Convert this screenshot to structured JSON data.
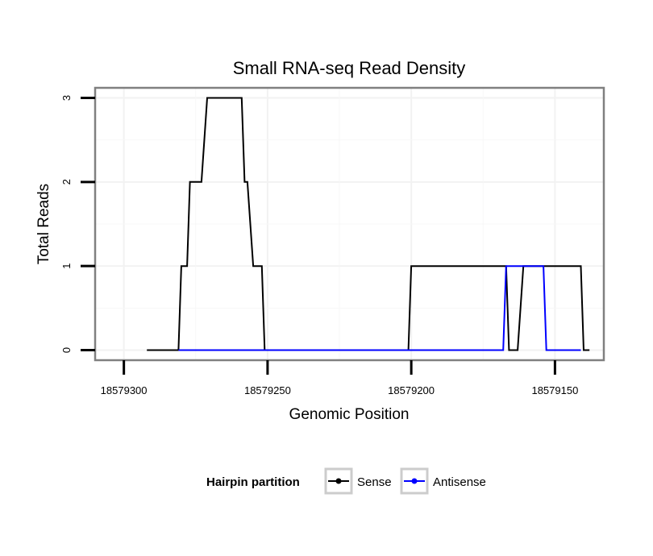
{
  "chart_data": {
    "type": "line",
    "title": "Small RNA-seq Read Density",
    "xlabel": "Genomic Position",
    "ylabel": "Total Reads",
    "x_reversed": true,
    "xlim": [
      18579310,
      18579133
    ],
    "ylim": [
      -0.12,
      3.12
    ],
    "x_ticks": [
      18579300,
      18579250,
      18579200,
      18579150
    ],
    "x_tick_labels": [
      "18579300",
      "18579250",
      "18579200",
      "18579150"
    ],
    "y_ticks": [
      0,
      1,
      2,
      3
    ],
    "y_tick_labels": [
      "0",
      "1",
      "2",
      "3"
    ],
    "grid": true,
    "legend": {
      "title": "Hairpin partition",
      "placement": "bottom"
    },
    "series": [
      {
        "name": "Sense",
        "color": "#000000",
        "x": [
          18579292,
          18579281,
          18579280,
          18579278,
          18579277,
          18579273,
          18579271,
          18579259,
          18579258,
          18579257,
          18579255,
          18579252,
          18579251,
          18579201,
          18579200,
          18579167,
          18579166,
          18579163,
          18579161,
          18579154,
          18579153,
          18579141,
          18579140,
          18579138
        ],
        "y": [
          0,
          0,
          1,
          1,
          2,
          2,
          3,
          3,
          2,
          2,
          1,
          1,
          0,
          0,
          1,
          1,
          0,
          0,
          1,
          1,
          1,
          1,
          0,
          0
        ]
      },
      {
        "name": "Antisense",
        "color": "#0000ff",
        "x": [
          18579281,
          18579168,
          18579167,
          18579154,
          18579153,
          18579141
        ],
        "y": [
          0,
          0,
          1,
          1,
          0,
          0
        ]
      }
    ]
  }
}
